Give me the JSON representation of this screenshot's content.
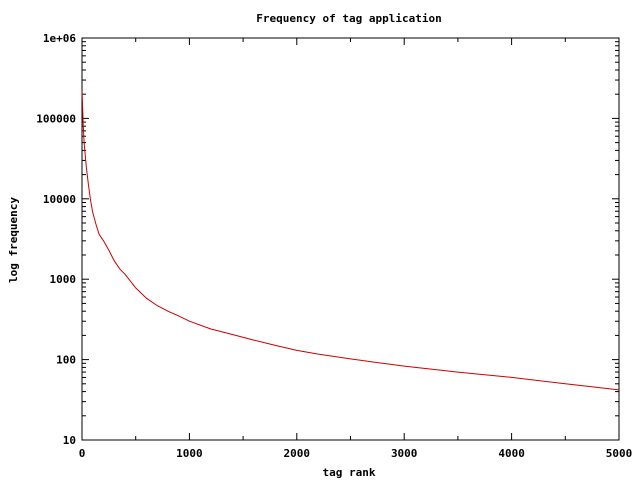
{
  "chart_data": {
    "type": "line",
    "title": "Frequency of tag application",
    "xlabel": "tag rank",
    "ylabel": "log frequency",
    "xlim": [
      0,
      5000
    ],
    "ylim": [
      10,
      1000000
    ],
    "y_scale": "log",
    "grid": false,
    "legend": "none",
    "x_ticks": [
      0,
      1000,
      2000,
      3000,
      4000,
      5000
    ],
    "x_tick_labels": [
      "0",
      "1000",
      "2000",
      "3000",
      "4000",
      "5000"
    ],
    "y_ticks": [
      10,
      100,
      1000,
      10000,
      100000,
      1000000
    ],
    "y_tick_labels": [
      "10",
      "100",
      "1000",
      "10000",
      "100000",
      "1e+06"
    ],
    "series": [
      {
        "color": "#cc0000",
        "x": [
          1,
          10,
          20,
          40,
          60,
          80,
          100,
          130,
          160,
          200,
          250,
          300,
          350,
          400,
          500,
          600,
          700,
          800,
          900,
          1000,
          1200,
          1400,
          1600,
          1800,
          2000,
          2200,
          2500,
          2800,
          3000,
          3500,
          4000,
          4500,
          5000
        ],
        "y": [
          220000,
          90000,
          50000,
          25000,
          15000,
          9500,
          6800,
          4800,
          3600,
          3000,
          2300,
          1700,
          1350,
          1150,
          780,
          580,
          470,
          400,
          350,
          300,
          240,
          205,
          175,
          150,
          130,
          117,
          102,
          90,
          83,
          70,
          60,
          50,
          42
        ]
      }
    ]
  }
}
